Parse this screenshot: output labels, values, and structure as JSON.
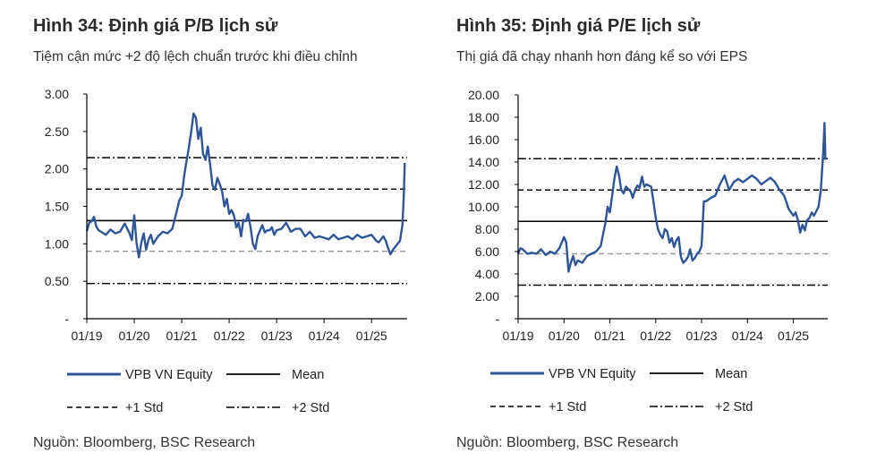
{
  "charts": [
    {
      "title": "Hình 34: Định giá P/B lịch sử",
      "subtitle": "Tiệm cận mức +2 độ lệch chuẩn trước khi điều chỉnh",
      "source": "Nguồn: Bloomberg, BSC Research",
      "legend": {
        "series_label": "VPB VN Equity",
        "mean_label": "Mean",
        "std1_label": "+1 Std",
        "std2_label": "+2 Std"
      },
      "y_tick_labels": [
        "3.00",
        "2.50",
        "2.00",
        "1.50",
        "1.00",
        "0.50",
        "-"
      ],
      "x_tick_labels": [
        "01/19",
        "01/20",
        "01/21",
        "01/22",
        "01/23",
        "01/24",
        "01/25"
      ]
    },
    {
      "title": "Hình 35: Định giá P/E lịch sử",
      "subtitle": "Thị giá đã chạy nhanh hơn đáng kể so với EPS",
      "source": "Nguồn: Bloomberg, BSC Research",
      "legend": {
        "series_label": "VPB VN Equity",
        "mean_label": "Mean",
        "std1_label": "+1 Std",
        "std2_label": "+2 Std"
      },
      "y_tick_labels": [
        "20.00",
        "18.00",
        "16.00",
        "14.00",
        "12.00",
        "10.00",
        "8.00",
        "6.00",
        "4.00",
        "2.00",
        "-"
      ],
      "x_tick_labels": [
        "01/19",
        "01/20",
        "01/21",
        "01/22",
        "01/23",
        "01/24",
        "01/25"
      ]
    }
  ],
  "chart_data": [
    {
      "type": "line",
      "title": "Hình 34: Định giá P/B lịch sử",
      "ylim": [
        0,
        3
      ],
      "x_range": [
        2019.0,
        2025.75
      ],
      "colors": {
        "series": "#2e5597",
        "reference": "#000000",
        "minus_std": "#9a9a9a"
      },
      "series": [
        {
          "name": "VPB VN Equity",
          "x": [
            2019.0,
            2019.05,
            2019.1,
            2019.15,
            2019.2,
            2019.25,
            2019.3,
            2019.4,
            2019.5,
            2019.6,
            2019.7,
            2019.8,
            2019.9,
            2019.95,
            2020.0,
            2020.05,
            2020.1,
            2020.15,
            2020.2,
            2020.25,
            2020.3,
            2020.35,
            2020.4,
            2020.5,
            2020.6,
            2020.7,
            2020.8,
            2020.85,
            2020.9,
            2020.95,
            2021.0,
            2021.05,
            2021.1,
            2021.15,
            2021.2,
            2021.25,
            2021.3,
            2021.35,
            2021.4,
            2021.45,
            2021.5,
            2021.55,
            2021.6,
            2021.65,
            2021.7,
            2021.75,
            2021.8,
            2021.85,
            2021.9,
            2021.95,
            2022.0,
            2022.05,
            2022.1,
            2022.15,
            2022.2,
            2022.25,
            2022.3,
            2022.35,
            2022.4,
            2022.45,
            2022.5,
            2022.55,
            2022.6,
            2022.65,
            2022.7,
            2022.75,
            2022.8,
            2022.85,
            2022.9,
            2022.95,
            2023.0,
            2023.1,
            2023.2,
            2023.3,
            2023.4,
            2023.5,
            2023.6,
            2023.7,
            2023.8,
            2023.9,
            2024.0,
            2024.1,
            2024.2,
            2024.3,
            2024.4,
            2024.5,
            2024.6,
            2024.7,
            2024.8,
            2024.9,
            2025.0,
            2025.05,
            2025.1,
            2025.15,
            2025.2,
            2025.25,
            2025.3,
            2025.35,
            2025.4,
            2025.45,
            2025.5,
            2025.55,
            2025.6,
            2025.65,
            2025.68,
            2025.7
          ],
          "values": [
            1.17,
            1.28,
            1.3,
            1.36,
            1.23,
            1.18,
            1.16,
            1.12,
            1.19,
            1.14,
            1.16,
            1.27,
            1.14,
            1.05,
            1.38,
            1.0,
            0.82,
            1.02,
            1.14,
            0.92,
            1.05,
            1.12,
            1.0,
            1.1,
            1.16,
            1.14,
            1.2,
            1.32,
            1.45,
            1.58,
            1.64,
            1.9,
            2.1,
            2.28,
            2.5,
            2.74,
            2.68,
            2.4,
            2.55,
            2.2,
            2.12,
            2.3,
            2.05,
            1.78,
            1.72,
            1.88,
            1.8,
            1.7,
            1.5,
            1.6,
            1.4,
            1.45,
            1.38,
            1.22,
            1.28,
            1.1,
            1.32,
            1.3,
            1.4,
            1.22,
            1.0,
            0.93,
            1.1,
            1.18,
            1.25,
            1.15,
            1.18,
            1.18,
            1.22,
            1.12,
            1.18,
            1.2,
            1.28,
            1.16,
            1.2,
            1.2,
            1.1,
            1.16,
            1.08,
            1.1,
            1.08,
            1.06,
            1.12,
            1.06,
            1.08,
            1.1,
            1.06,
            1.12,
            1.08,
            1.1,
            1.12,
            1.08,
            1.04,
            1.02,
            1.06,
            1.1,
            1.04,
            0.94,
            0.86,
            0.92,
            0.96,
            1.0,
            1.04,
            1.25,
            1.65,
            2.08
          ]
        }
      ],
      "reference_lines": {
        "mean": 1.31,
        "plus_1_std": 1.73,
        "plus_2_std": 2.15,
        "minus_1_std": 0.9,
        "minus_2_std": 0.47
      },
      "legend_position": "bottom"
    },
    {
      "type": "line",
      "title": "Hình 35: Định giá P/E lịch sử",
      "ylim": [
        0,
        20
      ],
      "x_range": [
        2019.0,
        2025.75
      ],
      "colors": {
        "series": "#2e5597",
        "reference": "#000000",
        "minus_std": "#9a9a9a"
      },
      "series": [
        {
          "name": "VPB VN Equity",
          "x": [
            2019.0,
            2019.05,
            2019.1,
            2019.15,
            2019.2,
            2019.3,
            2019.4,
            2019.5,
            2019.6,
            2019.7,
            2019.8,
            2019.9,
            2020.0,
            2020.05,
            2020.1,
            2020.15,
            2020.2,
            2020.25,
            2020.3,
            2020.4,
            2020.5,
            2020.6,
            2020.7,
            2020.8,
            2020.85,
            2020.9,
            2020.95,
            2021.0,
            2021.05,
            2021.1,
            2021.15,
            2021.2,
            2021.25,
            2021.3,
            2021.35,
            2021.4,
            2021.45,
            2021.5,
            2021.55,
            2021.6,
            2021.65,
            2021.7,
            2021.75,
            2021.8,
            2021.85,
            2021.9,
            2021.95,
            2022.0,
            2022.05,
            2022.1,
            2022.15,
            2022.2,
            2022.25,
            2022.3,
            2022.35,
            2022.4,
            2022.45,
            2022.5,
            2022.55,
            2022.6,
            2022.65,
            2022.7,
            2022.75,
            2022.8,
            2022.85,
            2022.9,
            2022.95,
            2023.0,
            2023.05,
            2023.1,
            2023.2,
            2023.3,
            2023.4,
            2023.5,
            2023.6,
            2023.7,
            2023.8,
            2023.9,
            2024.0,
            2024.1,
            2024.2,
            2024.3,
            2024.4,
            2024.5,
            2024.6,
            2024.7,
            2024.8,
            2024.9,
            2025.0,
            2025.05,
            2025.1,
            2025.15,
            2025.2,
            2025.25,
            2025.3,
            2025.35,
            2025.4,
            2025.45,
            2025.5,
            2025.55,
            2025.6,
            2025.65,
            2025.68,
            2025.7
          ],
          "values": [
            5.8,
            6.3,
            6.2,
            6.0,
            5.8,
            5.9,
            5.8,
            6.2,
            5.7,
            6.0,
            5.8,
            6.3,
            7.3,
            6.8,
            4.2,
            5.0,
            5.6,
            4.8,
            5.2,
            5.0,
            5.6,
            5.8,
            6.0,
            6.5,
            7.5,
            8.5,
            10.0,
            9.5,
            11.0,
            12.5,
            13.6,
            12.8,
            11.5,
            11.2,
            11.8,
            11.6,
            11.4,
            10.8,
            11.5,
            11.9,
            11.7,
            12.7,
            11.8,
            12.0,
            11.9,
            11.8,
            10.5,
            9.0,
            8.0,
            7.5,
            7.2,
            8.0,
            7.8,
            6.8,
            7.2,
            6.4,
            7.0,
            7.3,
            5.5,
            5.0,
            5.2,
            5.5,
            6.2,
            5.2,
            5.4,
            5.8,
            6.0,
            6.5,
            10.5,
            10.5,
            10.8,
            11.0,
            12.0,
            12.8,
            11.5,
            12.2,
            12.5,
            12.2,
            12.5,
            12.8,
            12.5,
            12.0,
            12.3,
            12.6,
            12.2,
            11.5,
            11.0,
            9.8,
            9.2,
            9.5,
            8.8,
            7.7,
            8.4,
            7.9,
            8.8,
            9.0,
            9.5,
            9.2,
            9.6,
            10.0,
            11.5,
            14.8,
            17.5,
            14.2
          ]
        }
      ],
      "reference_lines": {
        "mean": 8.7,
        "plus_1_std": 11.5,
        "plus_2_std": 14.3,
        "minus_1_std": 5.8,
        "minus_2_std": 3.0
      },
      "legend_position": "bottom"
    }
  ]
}
